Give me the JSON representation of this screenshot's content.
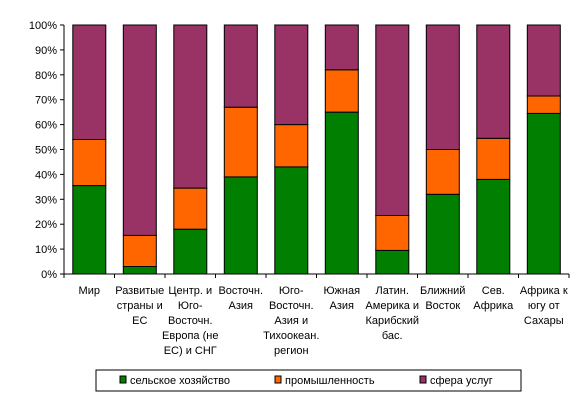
{
  "chart_data": {
    "type": "bar",
    "stacked": true,
    "percent": true,
    "categories": [
      [
        "Мир"
      ],
      [
        "Развитые",
        "страны и",
        "ЕС"
      ],
      [
        "Центр. и",
        "Юго-",
        "Восточн.",
        "Европа (не",
        "ЕС) и СНГ"
      ],
      [
        "Восточн.",
        "Азия"
      ],
      [
        "Юго-",
        "Восточн.",
        "Азия и",
        "Тихоокеан.",
        "регион"
      ],
      [
        "Южная",
        "Азия"
      ],
      [
        "Латин.",
        "Америка и",
        "Карибский",
        "бас."
      ],
      [
        "Ближний",
        "Восток"
      ],
      [
        "Сев.",
        "Африка"
      ],
      [
        "Африка к",
        "югу от",
        "Сахары"
      ]
    ],
    "series": [
      {
        "name": "сельское хозяйство",
        "color": "#007F00",
        "values": [
          35.5,
          3,
          18,
          39,
          43,
          65,
          9.5,
          32,
          38,
          64.5
        ]
      },
      {
        "name": "промышленность",
        "color": "#FF6600",
        "values": [
          18.5,
          12.5,
          16.5,
          28,
          17,
          17,
          14,
          18,
          16.5,
          7
        ]
      },
      {
        "name": "сфера услуг",
        "color": "#993366",
        "values": [
          46,
          84.5,
          65.5,
          33,
          40,
          18,
          76.5,
          50,
          45.5,
          28.5
        ]
      }
    ],
    "yticks": [
      "0%",
      "10%",
      "20%",
      "30%",
      "40%",
      "50%",
      "60%",
      "70%",
      "80%",
      "90%",
      "100%"
    ],
    "ylim": [
      0,
      100
    ],
    "grid": false,
    "legend_position": "bottom"
  }
}
